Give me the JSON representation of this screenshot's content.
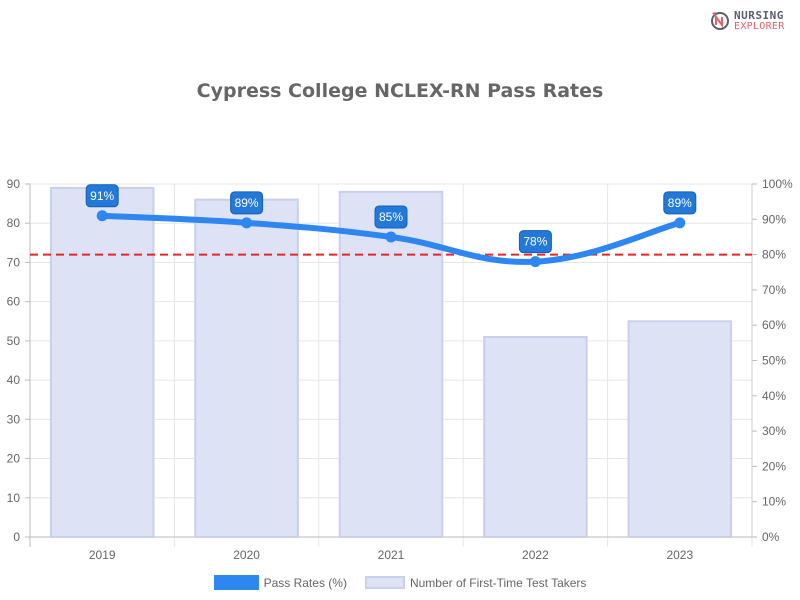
{
  "logo": {
    "line1": "NURSING",
    "line2": "EXPLORER"
  },
  "chart_data": {
    "type": "bar+line",
    "title": "Cypress College NCLEX-RN Pass Rates",
    "categories": [
      "2019",
      "2020",
      "2021",
      "2022",
      "2023"
    ],
    "series": [
      {
        "name": "Number of First-Time Test Takers",
        "type": "bar",
        "axis": "left",
        "values": [
          89,
          86,
          88,
          51,
          55
        ],
        "color": "#dde3f5",
        "border": "#c9d0ea"
      },
      {
        "name": "Pass Rates (%)",
        "type": "line",
        "axis": "right",
        "values": [
          91,
          89,
          85,
          78,
          89
        ],
        "labels": [
          "91%",
          "89%",
          "85%",
          "78%",
          "89%"
        ],
        "color": "#2e86f0"
      }
    ],
    "reference_line": {
      "value": 80,
      "axis": "right",
      "color": "#e8242a",
      "style": "dashed"
    },
    "left_axis": {
      "ylim": [
        0,
        90
      ],
      "ticks": [
        "0",
        "10",
        "20",
        "30",
        "40",
        "50",
        "60",
        "70",
        "80",
        "90"
      ]
    },
    "right_axis": {
      "ylim": [
        0,
        100
      ],
      "ticks": [
        "0%",
        "10%",
        "20%",
        "30%",
        "40%",
        "50%",
        "60%",
        "70%",
        "80%",
        "90%",
        "100%"
      ]
    },
    "grid": true,
    "legend_position": "bottom"
  },
  "legend": {
    "line_label": "Pass Rates (%)",
    "bar_label": "Number of First-Time Test Takers"
  }
}
